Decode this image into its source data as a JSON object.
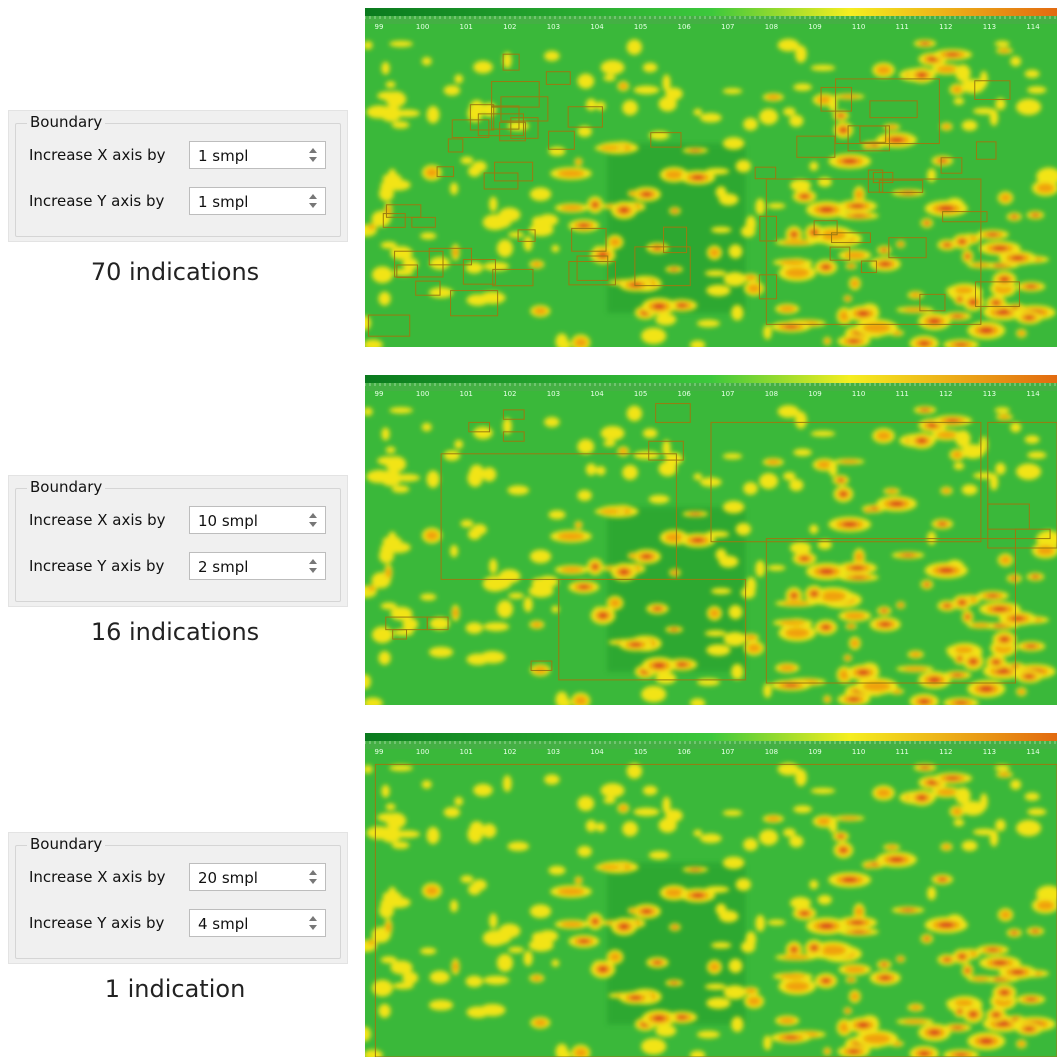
{
  "panels": [
    {
      "group_title": "Boundary",
      "x_label": "Increase X axis by",
      "x_value": "1 smpl",
      "y_label": "Increase Y axis by",
      "y_value": "1 smpl",
      "result": "70 indications"
    },
    {
      "group_title": "Boundary",
      "x_label": "Increase X axis by",
      "x_value": "10 smpl",
      "y_label": "Increase Y axis by",
      "y_value": "2 smpl",
      "result": "16 indications"
    },
    {
      "group_title": "Boundary",
      "x_label": "Increase X axis by",
      "x_value": "20 smpl",
      "y_label": "Increase Y axis by",
      "y_value": "4 smpl",
      "result": "1 indication"
    }
  ],
  "ruler_ticks": [
    "99",
    "100",
    "101",
    "102",
    "103",
    "104",
    "105",
    "106",
    "107",
    "108",
    "109",
    "110",
    "111",
    "112",
    "113",
    "114"
  ]
}
